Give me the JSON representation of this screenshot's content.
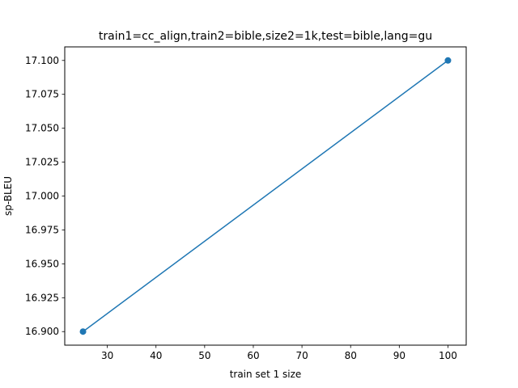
{
  "chart_data": {
    "type": "line",
    "title": "train1=cc_align,train2=bible,size2=1k,test=bible,lang=gu",
    "xlabel": "train set 1 size",
    "ylabel": "sp-BLEU",
    "xlim": [
      21.25,
      103.75
    ],
    "ylim": [
      16.89,
      17.11
    ],
    "xticks": [
      30,
      40,
      50,
      60,
      70,
      80,
      90,
      100
    ],
    "yticks": [
      16.9,
      16.925,
      16.95,
      16.975,
      17.0,
      17.025,
      17.05,
      17.075,
      17.1
    ],
    "ytick_labels": [
      "16.900",
      "16.925",
      "16.950",
      "16.975",
      "17.000",
      "17.025",
      "17.050",
      "17.075",
      "17.100"
    ],
    "grid": false,
    "series": [
      {
        "color": "#1f77b4",
        "marker": "circle",
        "x": [
          25,
          100
        ],
        "y": [
          16.9,
          17.1
        ]
      }
    ]
  }
}
